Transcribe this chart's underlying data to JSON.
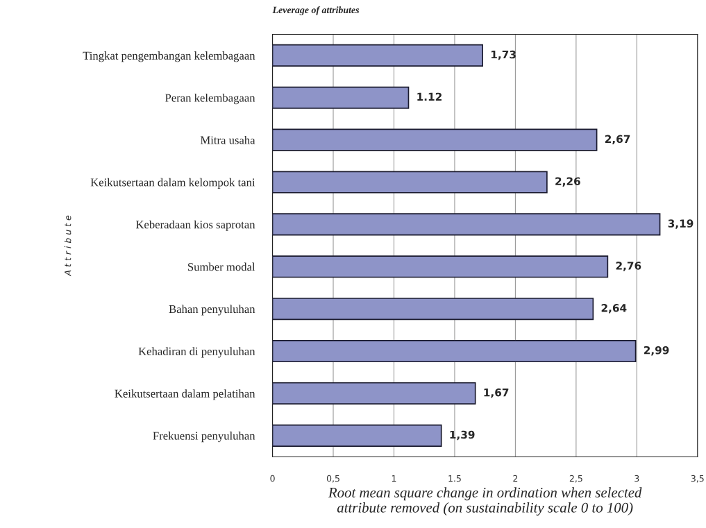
{
  "chart_data": {
    "type": "bar",
    "orientation": "horizontal",
    "title": "Leverage of attributes",
    "xlabel": "Root mean square change in ordination when selected\nattribute removed (on sustainability scale 0 to 100)",
    "ylabel": "A t t r i b u t e",
    "categories": [
      "Tingkat pengembangan kelembagaan",
      "Peran kelembagaan",
      "Mitra usaha",
      "Keikutsertaan dalam kelompok tani",
      "Keberadaan kios saprotan",
      "Sumber modal",
      "Bahan penyuluhan",
      "Kehadiran di penyuluhan",
      "Keikutsertaan dalam pelatihan",
      "Frekuensi penyuluhan"
    ],
    "values": [
      1.73,
      1.12,
      2.67,
      2.26,
      3.19,
      2.76,
      2.64,
      2.99,
      1.67,
      1.39
    ],
    "value_labels": [
      "1,73",
      "1.12",
      "2,67",
      "2,26",
      "3,19",
      "2,76",
      "2,64",
      "2,99",
      "1,67",
      "1,39"
    ],
    "color": "#8e94c8",
    "xlim": [
      0,
      3.5
    ],
    "xticks": [
      0,
      {
        "value": 0.5,
        "label": "0,5"
      },
      1,
      1.5,
      2,
      {
        "value": 2.5,
        "label": "2,5"
      },
      3,
      {
        "value": 3.5,
        "label": "3,5"
      }
    ],
    "grid": "x",
    "legend": false
  }
}
